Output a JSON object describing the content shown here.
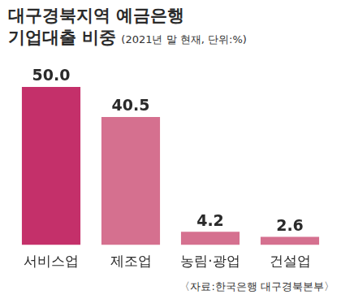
{
  "chart_data": {
    "type": "bar",
    "title": "대구경북지역 예금은행\n기업대출 비중",
    "subtitle": "(2021년 말 현재, 단위:%)",
    "source": "〈자료:한국은행 대구경북본부〉",
    "categories": [
      "서비스업",
      "제조업",
      "농림·광업",
      "건설업"
    ],
    "values": [
      50.0,
      40.5,
      4.2,
      2.6
    ],
    "value_labels": [
      "50.0",
      "40.5",
      "4.2",
      "2.6"
    ],
    "colors": [
      "#c4306a",
      "#d5708f",
      "#d5708f",
      "#d5708f"
    ],
    "data_labels": true,
    "tick_labels": "x",
    "grid": false,
    "legend": "none"
  }
}
